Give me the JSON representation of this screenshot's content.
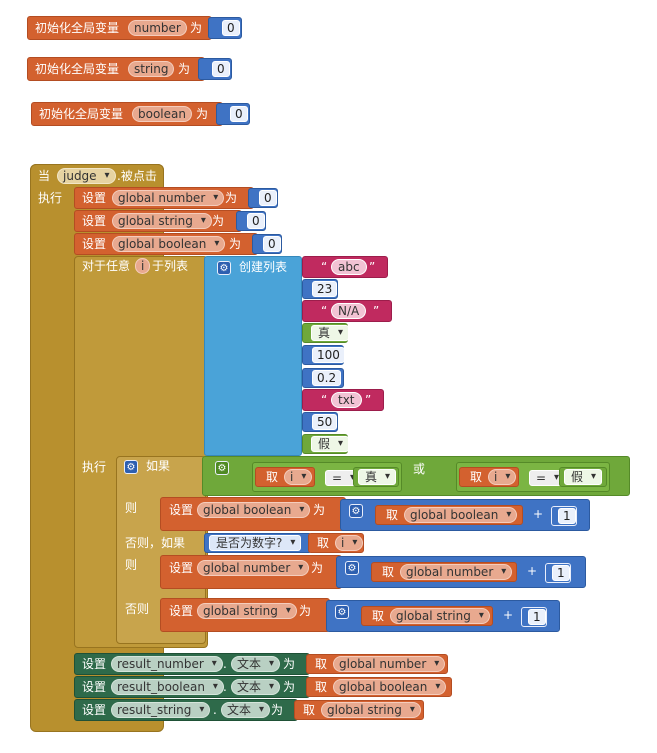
{
  "globals": [
    {
      "init_label": "初始化全局变量",
      "name": "number",
      "as_label": "为",
      "value": "0"
    },
    {
      "init_label": "初始化全局变量",
      "name": "string",
      "as_label": "为",
      "value": "0"
    },
    {
      "init_label": "初始化全局变量",
      "name": "boolean",
      "as_label": "为",
      "value": "0"
    }
  ],
  "event": {
    "when_label": "当",
    "component": "judge",
    "event_label": ".被点击",
    "do_label": "执行"
  },
  "sets": [
    {
      "set_label": "设置",
      "var": "global number",
      "as_label": "为",
      "value": "0"
    },
    {
      "set_label": "设置",
      "var": "global string",
      "as_label": "为",
      "value": "0"
    },
    {
      "set_label": "设置",
      "var": "global boolean",
      "as_label": "为",
      "value": "0"
    }
  ],
  "foreach": {
    "label_pre": "对于任意",
    "item": "i",
    "label_post": "于列表",
    "make_list": "创建列表",
    "items": [
      {
        "type": "text",
        "value": "abc"
      },
      {
        "type": "number",
        "value": "23"
      },
      {
        "type": "text",
        "value": "N/A"
      },
      {
        "type": "bool",
        "value": "真"
      },
      {
        "type": "number",
        "value": "100"
      },
      {
        "type": "number",
        "value": "0.2"
      },
      {
        "type": "text",
        "value": "txt"
      },
      {
        "type": "number",
        "value": "50"
      },
      {
        "type": "bool",
        "value": "假"
      }
    ],
    "do_label": "执行"
  },
  "ifblock": {
    "if_label": "如果",
    "get_label": "取",
    "var_i": "i",
    "eq": "=",
    "true_val": "真",
    "or_label": "或",
    "false_val": "假",
    "then_label": "则",
    "elseif_label": "否则，如果",
    "is_number_label": "是否为数字?",
    "else_label": "否则",
    "set_label": "设置",
    "as_label": "为",
    "plus": "+",
    "one": "1",
    "var_boolean": "global boolean",
    "var_number": "global number",
    "var_string": "global string"
  },
  "results": [
    {
      "set_label": "设置",
      "component": "result_number",
      "prop": "文本",
      "as_label": "为",
      "get_label": "取",
      "var": "global number"
    },
    {
      "set_label": "设置",
      "component": "result_boolean",
      "prop": "文本",
      "as_label": "为",
      "get_label": "取",
      "var": "global boolean"
    },
    {
      "set_label": "设置",
      "component": "result_string",
      "prop": "文本",
      "as_label": "为",
      "get_label": "取",
      "var": "global string"
    }
  ],
  "dot": "."
}
